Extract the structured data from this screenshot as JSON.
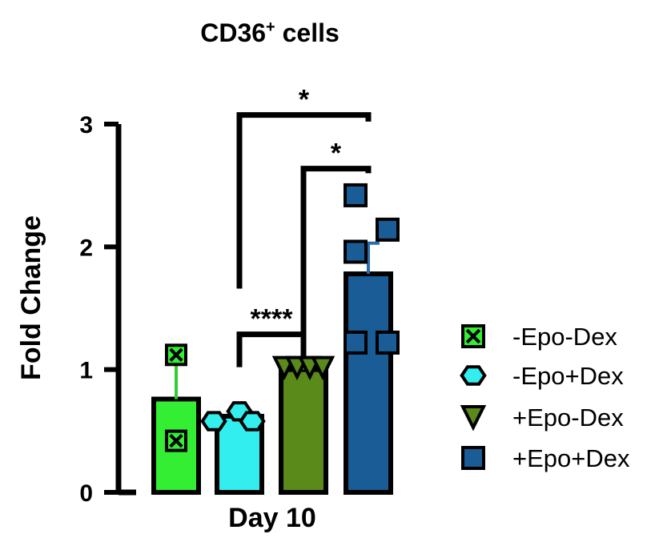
{
  "chart_data": {
    "type": "bar",
    "title_main": "CD36",
    "title_sup": "+",
    "title_rest": " cells",
    "ylabel": "Fold Change",
    "xlabel": "Day 10",
    "ylim": [
      0,
      3
    ],
    "yticks": [
      "0",
      "1",
      "2",
      "3"
    ],
    "groups": [
      {
        "name": "-Epo-Dex",
        "mean": 0.76,
        "sd": 0.36,
        "points": [
          1.12,
          0.42
        ],
        "marker": "boxed-x",
        "fill": "#33ee33",
        "stroke": "#000000",
        "error_color": "#33cc33"
      },
      {
        "name": "-Epo+Dex",
        "mean": 0.62,
        "sd": 0.04,
        "points": [
          0.58,
          0.66,
          0.58
        ],
        "marker": "hexagon",
        "fill": "#33eeee",
        "stroke": "#000000",
        "error_color": "#33cccc"
      },
      {
        "name": "+Epo-Dex",
        "mean": 1.0,
        "sd": 0.03,
        "points": [
          1.02,
          1.02,
          1.02,
          1.02
        ],
        "marker": "triangle-down",
        "fill": "#5a8a1a",
        "stroke": "#000000",
        "error_color": "#5a8a1a"
      },
      {
        "name": "+Epo+Dex",
        "mean": 1.78,
        "sd": 0.25,
        "points": [
          2.42,
          2.14,
          1.96,
          1.22,
          1.22
        ],
        "marker": "square",
        "fill": "#1a5c96",
        "stroke": "#000000",
        "error_color": "#2a6cae"
      }
    ],
    "significance": [
      {
        "from": 1,
        "to": 3,
        "label": "*"
      },
      {
        "from": 2,
        "to": 3,
        "label": "*"
      },
      {
        "from": 1,
        "to": 2,
        "label": "****"
      }
    ],
    "legend": {
      "position": "right"
    }
  }
}
